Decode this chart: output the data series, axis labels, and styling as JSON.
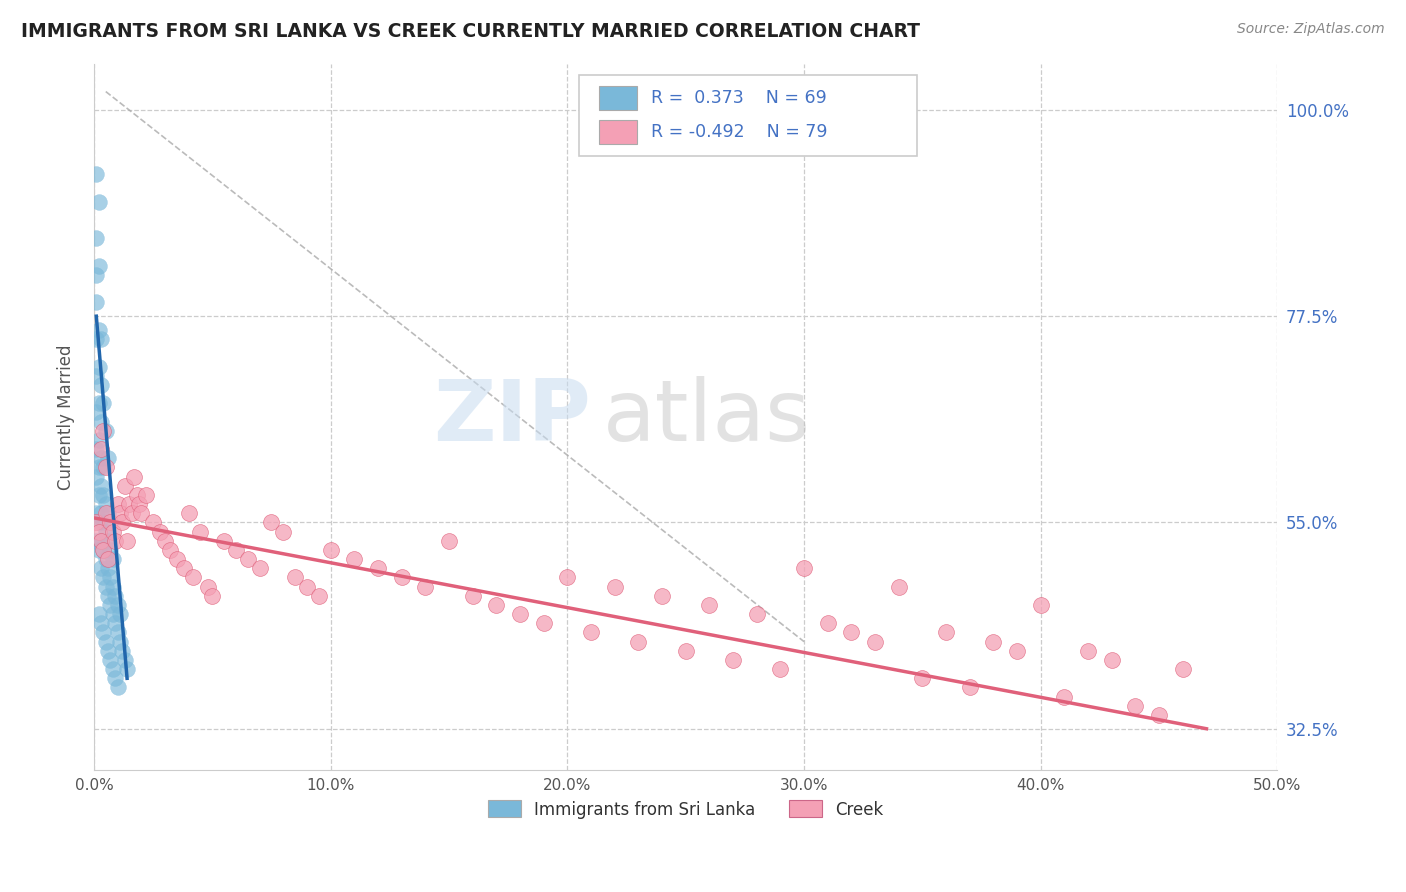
{
  "title": "IMMIGRANTS FROM SRI LANKA VS CREEK CURRENTLY MARRIED CORRELATION CHART",
  "source_text": "Source: ZipAtlas.com",
  "ylabel": "Currently Married",
  "xlim": [
    0.0,
    0.5
  ],
  "ylim": [
    0.28,
    1.05
  ],
  "xtick_labels": [
    "0.0%",
    "10.0%",
    "20.0%",
    "30.0%",
    "40.0%",
    "50.0%"
  ],
  "xtick_values": [
    0.0,
    0.1,
    0.2,
    0.3,
    0.4,
    0.5
  ],
  "ytick_labels_right": [
    "32.5%",
    "55.0%",
    "77.5%",
    "100.0%"
  ],
  "ytick_values_right": [
    0.325,
    0.55,
    0.775,
    1.0
  ],
  "grid_color": "#cccccc",
  "background_color": "#ffffff",
  "blue_color": "#7ab8d9",
  "blue_line_color": "#2166ac",
  "pink_color": "#f4a0b5",
  "pink_line_color": "#e0607a",
  "legend_label1": "Immigrants from Sri Lanka",
  "legend_label2": "Creek",
  "blue_scatter": [
    [
      0.001,
      0.56
    ],
    [
      0.001,
      0.6
    ],
    [
      0.001,
      0.63
    ],
    [
      0.001,
      0.67
    ],
    [
      0.001,
      0.71
    ],
    [
      0.001,
      0.75
    ],
    [
      0.001,
      0.79
    ],
    [
      0.002,
      0.52
    ],
    [
      0.002,
      0.55
    ],
    [
      0.002,
      0.58
    ],
    [
      0.002,
      0.61
    ],
    [
      0.002,
      0.64
    ],
    [
      0.002,
      0.68
    ],
    [
      0.002,
      0.72
    ],
    [
      0.002,
      0.76
    ],
    [
      0.003,
      0.5
    ],
    [
      0.003,
      0.53
    ],
    [
      0.003,
      0.56
    ],
    [
      0.003,
      0.59
    ],
    [
      0.003,
      0.62
    ],
    [
      0.003,
      0.66
    ],
    [
      0.003,
      0.7
    ],
    [
      0.004,
      0.49
    ],
    [
      0.004,
      0.52
    ],
    [
      0.004,
      0.55
    ],
    [
      0.004,
      0.58
    ],
    [
      0.004,
      0.61
    ],
    [
      0.005,
      0.48
    ],
    [
      0.005,
      0.51
    ],
    [
      0.005,
      0.54
    ],
    [
      0.005,
      0.57
    ],
    [
      0.006,
      0.47
    ],
    [
      0.006,
      0.5
    ],
    [
      0.006,
      0.53
    ],
    [
      0.006,
      0.56
    ],
    [
      0.007,
      0.46
    ],
    [
      0.007,
      0.49
    ],
    [
      0.007,
      0.52
    ],
    [
      0.008,
      0.45
    ],
    [
      0.008,
      0.48
    ],
    [
      0.008,
      0.51
    ],
    [
      0.009,
      0.44
    ],
    [
      0.009,
      0.47
    ],
    [
      0.01,
      0.43
    ],
    [
      0.01,
      0.46
    ],
    [
      0.011,
      0.42
    ],
    [
      0.011,
      0.45
    ],
    [
      0.012,
      0.41
    ],
    [
      0.013,
      0.4
    ],
    [
      0.014,
      0.39
    ],
    [
      0.001,
      0.82
    ],
    [
      0.001,
      0.86
    ],
    [
      0.002,
      0.83
    ],
    [
      0.001,
      0.53
    ],
    [
      0.002,
      0.45
    ],
    [
      0.003,
      0.44
    ],
    [
      0.004,
      0.43
    ],
    [
      0.005,
      0.42
    ],
    [
      0.006,
      0.41
    ],
    [
      0.007,
      0.4
    ],
    [
      0.008,
      0.39
    ],
    [
      0.009,
      0.38
    ],
    [
      0.01,
      0.37
    ],
    [
      0.003,
      0.75
    ],
    [
      0.002,
      0.9
    ],
    [
      0.001,
      0.93
    ],
    [
      0.004,
      0.68
    ],
    [
      0.005,
      0.65
    ],
    [
      0.006,
      0.62
    ]
  ],
  "pink_scatter": [
    [
      0.001,
      0.55
    ],
    [
      0.002,
      0.54
    ],
    [
      0.003,
      0.53
    ],
    [
      0.004,
      0.52
    ],
    [
      0.005,
      0.56
    ],
    [
      0.006,
      0.51
    ],
    [
      0.007,
      0.55
    ],
    [
      0.008,
      0.54
    ],
    [
      0.009,
      0.53
    ],
    [
      0.01,
      0.57
    ],
    [
      0.011,
      0.56
    ],
    [
      0.012,
      0.55
    ],
    [
      0.013,
      0.59
    ],
    [
      0.014,
      0.53
    ],
    [
      0.015,
      0.57
    ],
    [
      0.016,
      0.56
    ],
    [
      0.017,
      0.6
    ],
    [
      0.018,
      0.58
    ],
    [
      0.019,
      0.57
    ],
    [
      0.02,
      0.56
    ],
    [
      0.022,
      0.58
    ],
    [
      0.025,
      0.55
    ],
    [
      0.028,
      0.54
    ],
    [
      0.03,
      0.53
    ],
    [
      0.032,
      0.52
    ],
    [
      0.035,
      0.51
    ],
    [
      0.038,
      0.5
    ],
    [
      0.04,
      0.56
    ],
    [
      0.042,
      0.49
    ],
    [
      0.045,
      0.54
    ],
    [
      0.048,
      0.48
    ],
    [
      0.05,
      0.47
    ],
    [
      0.055,
      0.53
    ],
    [
      0.06,
      0.52
    ],
    [
      0.065,
      0.51
    ],
    [
      0.07,
      0.5
    ],
    [
      0.075,
      0.55
    ],
    [
      0.08,
      0.54
    ],
    [
      0.085,
      0.49
    ],
    [
      0.09,
      0.48
    ],
    [
      0.095,
      0.47
    ],
    [
      0.1,
      0.52
    ],
    [
      0.11,
      0.51
    ],
    [
      0.12,
      0.5
    ],
    [
      0.13,
      0.49
    ],
    [
      0.14,
      0.48
    ],
    [
      0.15,
      0.53
    ],
    [
      0.16,
      0.47
    ],
    [
      0.17,
      0.46
    ],
    [
      0.18,
      0.45
    ],
    [
      0.19,
      0.44
    ],
    [
      0.2,
      0.49
    ],
    [
      0.21,
      0.43
    ],
    [
      0.22,
      0.48
    ],
    [
      0.23,
      0.42
    ],
    [
      0.24,
      0.47
    ],
    [
      0.25,
      0.41
    ],
    [
      0.26,
      0.46
    ],
    [
      0.27,
      0.4
    ],
    [
      0.28,
      0.45
    ],
    [
      0.29,
      0.39
    ],
    [
      0.3,
      0.5
    ],
    [
      0.31,
      0.44
    ],
    [
      0.32,
      0.43
    ],
    [
      0.33,
      0.42
    ],
    [
      0.34,
      0.48
    ],
    [
      0.35,
      0.38
    ],
    [
      0.36,
      0.43
    ],
    [
      0.37,
      0.37
    ],
    [
      0.38,
      0.42
    ],
    [
      0.39,
      0.41
    ],
    [
      0.4,
      0.46
    ],
    [
      0.41,
      0.36
    ],
    [
      0.42,
      0.41
    ],
    [
      0.43,
      0.4
    ],
    [
      0.44,
      0.35
    ],
    [
      0.45,
      0.34
    ],
    [
      0.46,
      0.39
    ],
    [
      0.003,
      0.63
    ],
    [
      0.004,
      0.65
    ],
    [
      0.005,
      0.61
    ]
  ],
  "ref_line": [
    [
      0.005,
      1.02
    ],
    [
      0.3,
      0.42
    ]
  ],
  "blue_trend_line": [
    [
      0.001,
      0.775
    ],
    [
      0.014,
      0.38
    ]
  ],
  "pink_trend_line": [
    [
      0.0,
      0.555
    ],
    [
      0.47,
      0.325
    ]
  ]
}
